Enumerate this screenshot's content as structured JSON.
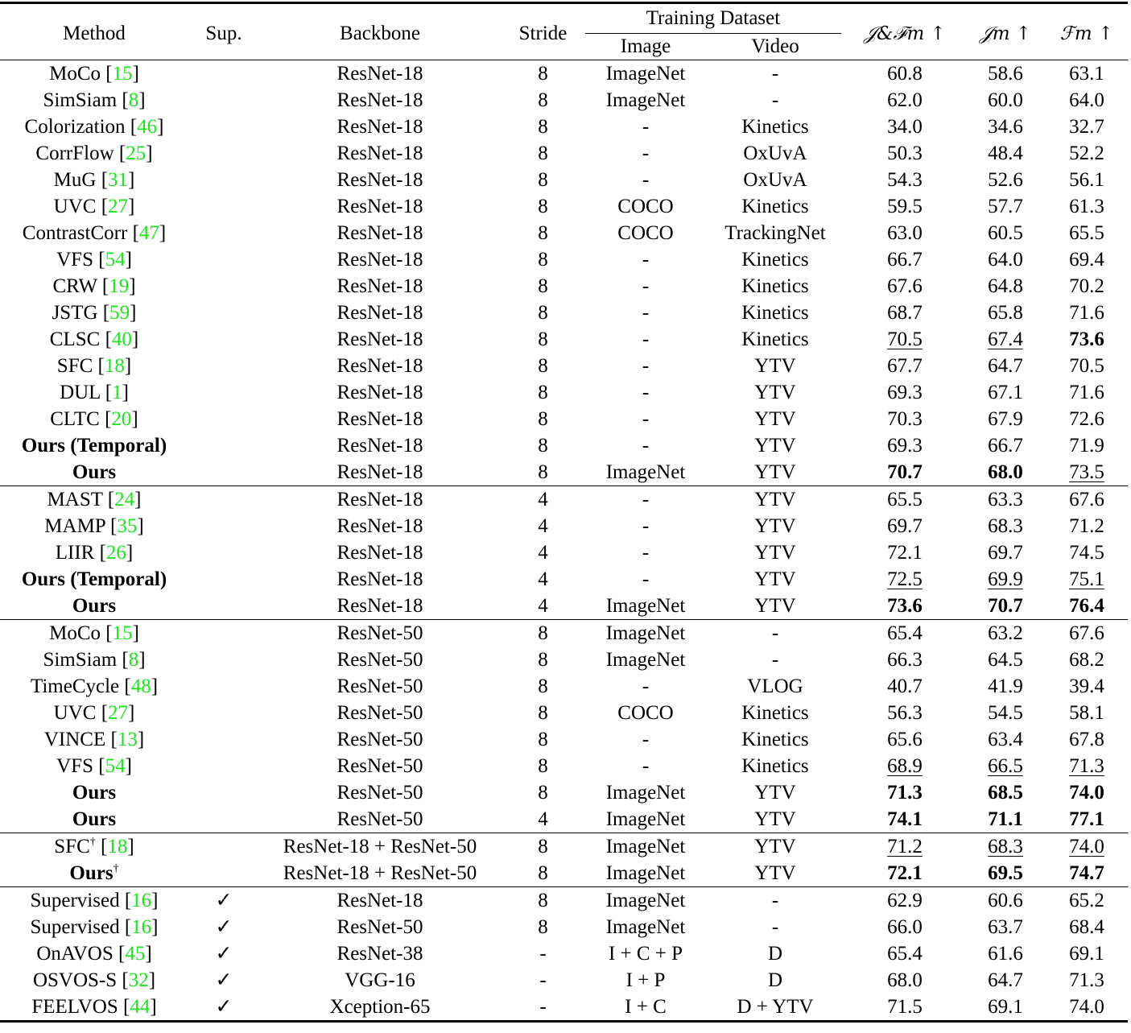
{
  "header": {
    "method": "Method",
    "sup": "Sup.",
    "backbone": "Backbone",
    "stride": "Stride",
    "training_dataset": "Training Dataset",
    "image": "Image",
    "video": "Video",
    "jf": "𝒥&ℱm ↑",
    "j": "𝒥m ↑",
    "f": "ℱm ↑"
  },
  "colors": {
    "citation": "#1ee31e",
    "text": "#000000",
    "background": "#ffffff"
  },
  "groups": [
    [
      {
        "method": "MoCo",
        "cite": "15",
        "sup": "",
        "bb": "ResNet-18",
        "stride": "8",
        "img": "ImageNet",
        "vid": "-",
        "jf": "60.8",
        "j": "58.6",
        "f": "63.1"
      },
      {
        "method": "SimSiam",
        "cite": "8",
        "sup": "",
        "bb": "ResNet-18",
        "stride": "8",
        "img": "ImageNet",
        "vid": "-",
        "jf": "62.0",
        "j": "60.0",
        "f": "64.0"
      },
      {
        "method": "Colorization",
        "cite": "46",
        "sup": "",
        "bb": "ResNet-18",
        "stride": "8",
        "img": "-",
        "vid": "Kinetics",
        "jf": "34.0",
        "j": "34.6",
        "f": "32.7"
      },
      {
        "method": "CorrFlow",
        "cite": "25",
        "sup": "",
        "bb": "ResNet-18",
        "stride": "8",
        "img": "-",
        "vid": "OxUvA",
        "jf": "50.3",
        "j": "48.4",
        "f": "52.2"
      },
      {
        "method": "MuG",
        "cite": "31",
        "sup": "",
        "bb": "ResNet-18",
        "stride": "8",
        "img": "-",
        "vid": "OxUvA",
        "jf": "54.3",
        "j": "52.6",
        "f": "56.1"
      },
      {
        "method": "UVC",
        "cite": "27",
        "sup": "",
        "bb": "ResNet-18",
        "stride": "8",
        "img": "COCO",
        "vid": "Kinetics",
        "jf": "59.5",
        "j": "57.7",
        "f": "61.3"
      },
      {
        "method": "ContrastCorr",
        "cite": "47",
        "sup": "",
        "bb": "ResNet-18",
        "stride": "8",
        "img": "COCO",
        "vid": "TrackingNet",
        "jf": "63.0",
        "j": "60.5",
        "f": "65.5"
      },
      {
        "method": "VFS",
        "cite": "54",
        "sup": "",
        "bb": "ResNet-18",
        "stride": "8",
        "img": "-",
        "vid": "Kinetics",
        "jf": "66.7",
        "j": "64.0",
        "f": "69.4"
      },
      {
        "method": "CRW",
        "cite": "19",
        "sup": "",
        "bb": "ResNet-18",
        "stride": "8",
        "img": "-",
        "vid": "Kinetics",
        "jf": "67.6",
        "j": "64.8",
        "f": "70.2"
      },
      {
        "method": "JSTG",
        "cite": "59",
        "sup": "",
        "bb": "ResNet-18",
        "stride": "8",
        "img": "-",
        "vid": "Kinetics",
        "jf": "68.7",
        "j": "65.8",
        "f": "71.6"
      },
      {
        "method": "CLSC",
        "cite": "40",
        "sup": "",
        "bb": "ResNet-18",
        "stride": "8",
        "img": "-",
        "vid": "Kinetics",
        "jf": "70.5",
        "j": "67.4",
        "f": "73.6",
        "jf_s": "u",
        "j_s": "u",
        "f_s": "b"
      },
      {
        "method": "SFC",
        "cite": "18",
        "sup": "",
        "bb": "ResNet-18",
        "stride": "8",
        "img": "-",
        "vid": "YTV",
        "jf": "67.7",
        "j": "64.7",
        "f": "70.5"
      },
      {
        "method": "DUL",
        "cite": "1",
        "sup": "",
        "bb": "ResNet-18",
        "stride": "8",
        "img": "-",
        "vid": "YTV",
        "jf": "69.3",
        "j": "67.1",
        "f": "71.6"
      },
      {
        "method": "CLTC",
        "cite": "20",
        "sup": "",
        "bb": "ResNet-18",
        "stride": "8",
        "img": "-",
        "vid": "YTV",
        "jf": "70.3",
        "j": "67.9",
        "f": "72.6"
      },
      {
        "method": "Ours (Temporal)",
        "bold": true,
        "sup": "",
        "bb": "ResNet-18",
        "stride": "8",
        "img": "-",
        "vid": "YTV",
        "jf": "69.3",
        "j": "66.7",
        "f": "71.9"
      },
      {
        "method": "Ours",
        "bold": true,
        "sup": "",
        "bb": "ResNet-18",
        "stride": "8",
        "img": "ImageNet",
        "vid": "YTV",
        "jf": "70.7",
        "j": "68.0",
        "f": "73.5",
        "jf_s": "b",
        "j_s": "b",
        "f_s": "u"
      }
    ],
    [
      {
        "method": "MAST",
        "cite": "24",
        "sup": "",
        "bb": "ResNet-18",
        "stride": "4",
        "img": "-",
        "vid": "YTV",
        "jf": "65.5",
        "j": "63.3",
        "f": "67.6"
      },
      {
        "method": "MAMP",
        "cite": "35",
        "sup": "",
        "bb": "ResNet-18",
        "stride": "4",
        "img": "-",
        "vid": "YTV",
        "jf": "69.7",
        "j": "68.3",
        "f": "71.2"
      },
      {
        "method": "LIIR",
        "cite": "26",
        "sup": "",
        "bb": "ResNet-18",
        "stride": "4",
        "img": "-",
        "vid": "YTV",
        "jf": "72.1",
        "j": "69.7",
        "f": "74.5"
      },
      {
        "method": "Ours (Temporal)",
        "bold": true,
        "sup": "",
        "bb": "ResNet-18",
        "stride": "4",
        "img": "-",
        "vid": "YTV",
        "jf": "72.5",
        "j": "69.9",
        "f": "75.1",
        "jf_s": "u",
        "j_s": "u",
        "f_s": "u"
      },
      {
        "method": "Ours",
        "bold": true,
        "sup": "",
        "bb": "ResNet-18",
        "stride": "4",
        "img": "ImageNet",
        "vid": "YTV",
        "jf": "73.6",
        "j": "70.7",
        "f": "76.4",
        "jf_s": "b",
        "j_s": "b",
        "f_s": "b"
      }
    ],
    [
      {
        "method": "MoCo",
        "cite": "15",
        "sup": "",
        "bb": "ResNet-50",
        "stride": "8",
        "img": "ImageNet",
        "vid": "-",
        "jf": "65.4",
        "j": "63.2",
        "f": "67.6"
      },
      {
        "method": "SimSiam",
        "cite": "8",
        "sup": "",
        "bb": "ResNet-50",
        "stride": "8",
        "img": "ImageNet",
        "vid": "-",
        "jf": "66.3",
        "j": "64.5",
        "f": "68.2"
      },
      {
        "method": "TimeCycle",
        "cite": "48",
        "sup": "",
        "bb": "ResNet-50",
        "stride": "8",
        "img": "-",
        "vid": "VLOG",
        "jf": "40.7",
        "j": "41.9",
        "f": "39.4"
      },
      {
        "method": "UVC",
        "cite": "27",
        "sup": "",
        "bb": "ResNet-50",
        "stride": "8",
        "img": "COCO",
        "vid": "Kinetics",
        "jf": "56.3",
        "j": "54.5",
        "f": "58.1"
      },
      {
        "method": "VINCE",
        "cite": "13",
        "sup": "",
        "bb": "ResNet-50",
        "stride": "8",
        "img": "-",
        "vid": "Kinetics",
        "jf": "65.6",
        "j": "63.4",
        "f": "67.8"
      },
      {
        "method": "VFS",
        "cite": "54",
        "sup": "",
        "bb": "ResNet-50",
        "stride": "8",
        "img": "-",
        "vid": "Kinetics",
        "jf": "68.9",
        "j": "66.5",
        "f": "71.3",
        "jf_s": "u",
        "j_s": "u",
        "f_s": "u"
      },
      {
        "method": "Ours",
        "bold": true,
        "sup": "",
        "bb": "ResNet-50",
        "stride": "8",
        "img": "ImageNet",
        "vid": "YTV",
        "jf": "71.3",
        "j": "68.5",
        "f": "74.0",
        "jf_s": "b",
        "j_s": "b",
        "f_s": "b"
      },
      {
        "method": "Ours",
        "bold": true,
        "sup": "",
        "bb": "ResNet-50",
        "stride": "4",
        "img": "ImageNet",
        "vid": "YTV",
        "jf": "74.1",
        "j": "71.1",
        "f": "77.1",
        "jf_s": "b",
        "j_s": "b",
        "f_s": "b"
      }
    ],
    [
      {
        "method": "SFC",
        "dagger": "†",
        "cite": "18",
        "sup": "",
        "bb": "ResNet-18 + ResNet-50",
        "stride": "8",
        "img": "ImageNet",
        "vid": "YTV",
        "jf": "71.2",
        "j": "68.3",
        "f": "74.0",
        "jf_s": "u",
        "j_s": "u",
        "f_s": "u"
      },
      {
        "method": "Ours",
        "dagger": "†",
        "bold": true,
        "sup": "",
        "bb": "ResNet-18 + ResNet-50",
        "stride": "8",
        "img": "ImageNet",
        "vid": "YTV",
        "jf": "72.1",
        "j": "69.5",
        "f": "74.7",
        "jf_s": "b",
        "j_s": "b",
        "f_s": "b"
      }
    ],
    [
      {
        "method": "Supervised",
        "cite": "16",
        "sup": "✓",
        "bb": "ResNet-18",
        "stride": "8",
        "img": "ImageNet",
        "vid": "-",
        "jf": "62.9",
        "j": "60.6",
        "f": "65.2"
      },
      {
        "method": "Supervised",
        "cite": "16",
        "sup": "✓",
        "bb": "ResNet-50",
        "stride": "8",
        "img": "ImageNet",
        "vid": "-",
        "jf": "66.0",
        "j": "63.7",
        "f": "68.4"
      },
      {
        "method": "OnAVOS",
        "cite": "45",
        "sup": "✓",
        "bb": "ResNet-38",
        "stride": "-",
        "img": "I + C + P",
        "vid": "D",
        "jf": "65.4",
        "j": "61.6",
        "f": "69.1"
      },
      {
        "method": "OSVOS-S",
        "cite": "32",
        "sup": "✓",
        "bb": "VGG-16",
        "stride": "-",
        "img": "I + P",
        "vid": "D",
        "jf": "68.0",
        "j": "64.7",
        "f": "71.3"
      },
      {
        "method": "FEELVOS",
        "cite": "44",
        "sup": "✓",
        "bb": "Xception-65",
        "stride": "-",
        "img": "I + C",
        "vid": "D + YTV",
        "jf": "71.5",
        "j": "69.1",
        "f": "74.0"
      }
    ]
  ]
}
